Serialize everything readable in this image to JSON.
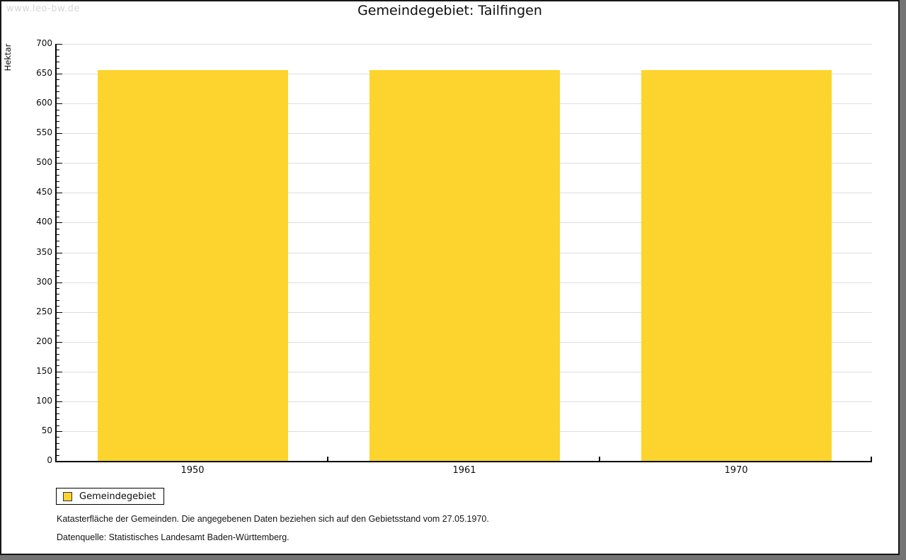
{
  "watermark": "www.leo-bw.de",
  "chart_data": {
    "type": "bar",
    "title": "Gemeindegebiet: Tailfingen",
    "categories": [
      "1950",
      "1961",
      "1970"
    ],
    "values": [
      656,
      656,
      656
    ],
    "series_name": "Gemeindegebiet",
    "xlabel": "",
    "ylabel": "Hektar",
    "ylim": [
      0,
      700
    ],
    "ytick_step": 50,
    "ytick_minor_step": 10,
    "grid": "horizontal-major",
    "legend_position": "bottom-left",
    "bar_color": "#FCD42D",
    "gridline_color": "#dddddd",
    "legend": [
      {
        "label": "Gemeindegebiet",
        "color": "#FCD42D"
      }
    ]
  },
  "footer": {
    "line1": "Katasterfläche der Gemeinden. Die angegebenen Daten beziehen sich auf den Gebietsstand vom 27.05.1970.",
    "line2": "Datenquelle: Statistisches Landesamt Baden-Württemberg."
  }
}
